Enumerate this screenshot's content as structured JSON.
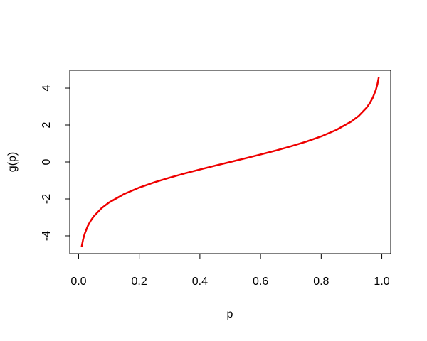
{
  "chart_data": {
    "type": "line",
    "x_label": "p",
    "y_label": "g(p)",
    "x": [
      0.01,
      0.015,
      0.02,
      0.03,
      0.04,
      0.05,
      0.075,
      0.1,
      0.15,
      0.2,
      0.25,
      0.3,
      0.35,
      0.4,
      0.45,
      0.5,
      0.55,
      0.6,
      0.65,
      0.7,
      0.75,
      0.8,
      0.85,
      0.9,
      0.925,
      0.95,
      0.96,
      0.97,
      0.98,
      0.985,
      0.99
    ],
    "values": [
      -4.595,
      -4.185,
      -3.892,
      -3.476,
      -3.178,
      -2.944,
      -2.512,
      -2.197,
      -1.735,
      -1.386,
      -1.099,
      -0.847,
      -0.619,
      -0.405,
      -0.201,
      0,
      0.201,
      0.405,
      0.619,
      0.847,
      1.099,
      1.386,
      1.735,
      2.197,
      2.512,
      2.944,
      3.178,
      3.476,
      3.892,
      4.185,
      4.595
    ],
    "color": "#ee0000",
    "xlim": [
      -0.0292,
      1.0292
    ],
    "ylim": [
      -4.9626,
      4.9626
    ],
    "xticks": [
      {
        "value": 0,
        "label": "0.0"
      },
      0.2,
      0.4,
      0.6,
      0.8,
      {
        "value": 1,
        "label": "1.0"
      }
    ],
    "yticks": [
      -4,
      -2,
      0,
      2,
      4
    ]
  }
}
